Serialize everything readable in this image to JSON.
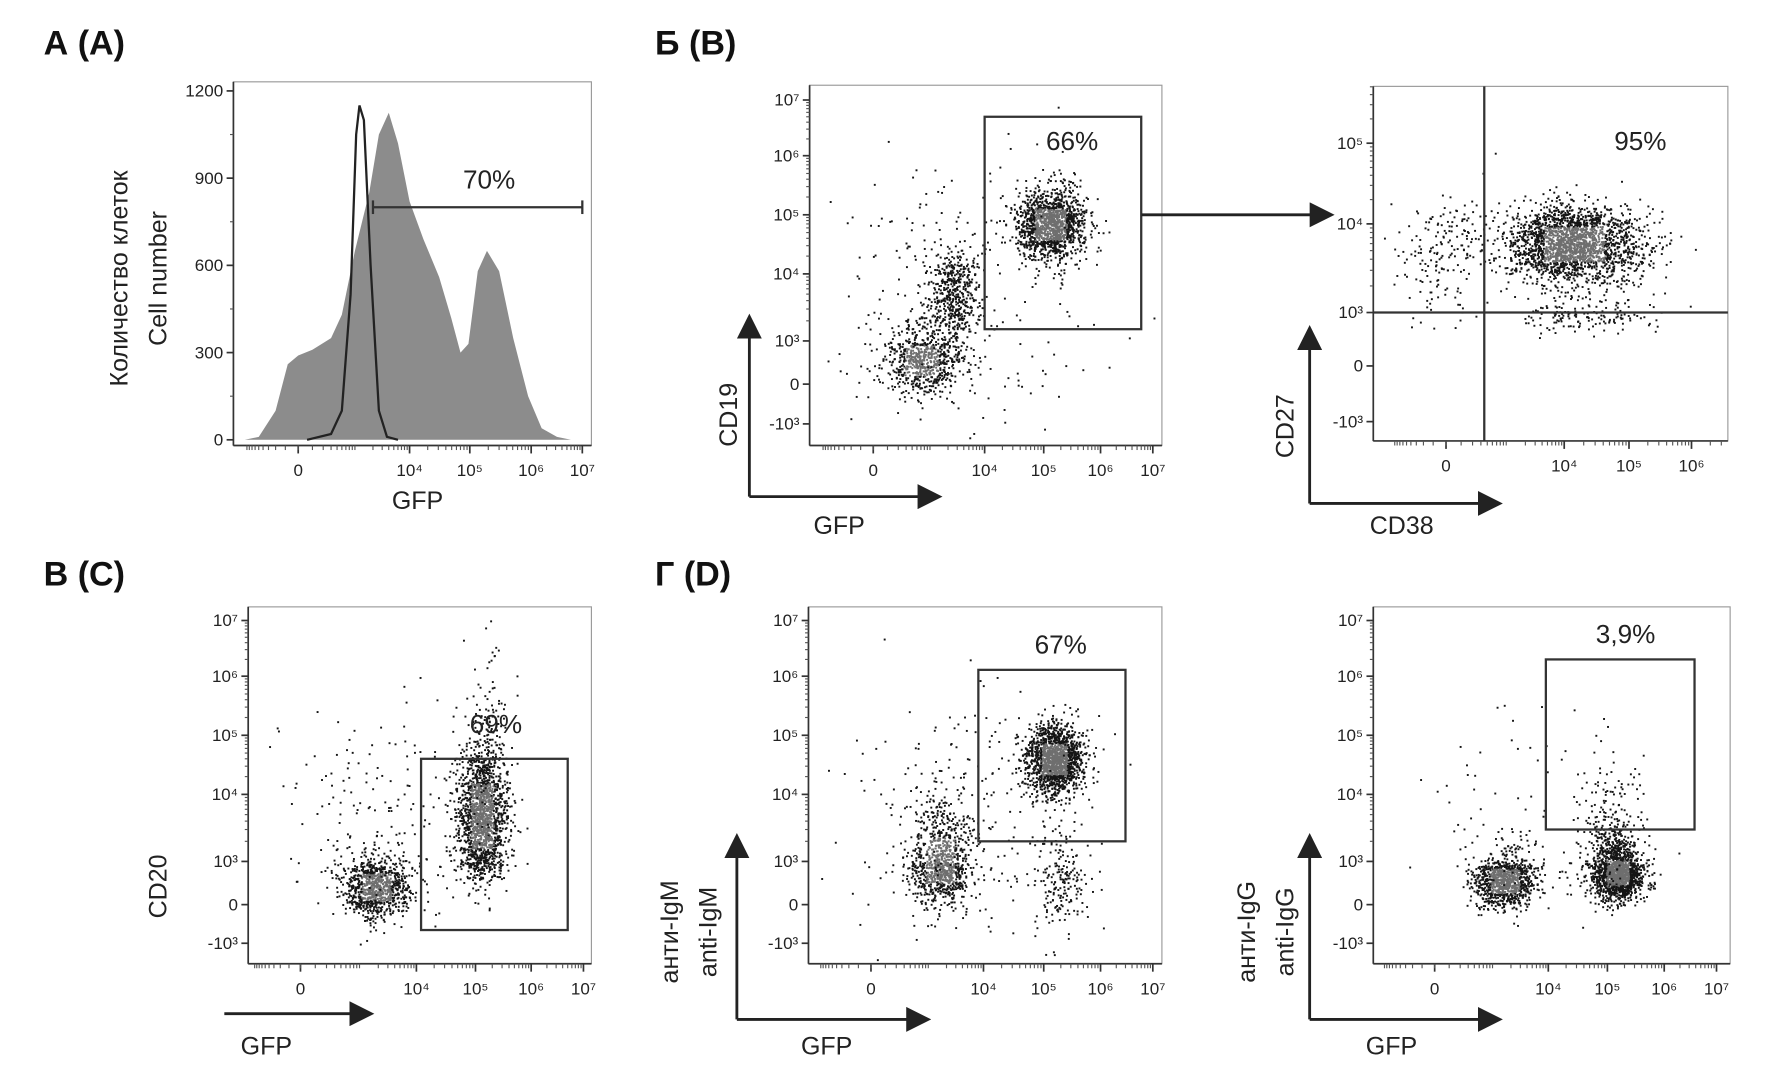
{
  "chart_data": [
    {
      "panel_label": "А (A)",
      "type": "area",
      "xlabel": "GFP",
      "ylabel": [
        "Количество клеток",
        "Cell number"
      ],
      "ylim": [
        0,
        1200
      ],
      "yticks": [
        "0",
        "300",
        "600",
        "900",
        "1200"
      ],
      "ytick_values": [
        0,
        300,
        600,
        900,
        1200
      ],
      "xticks": [
        "0",
        "10⁴",
        "10⁵",
        "10⁶",
        "10⁷"
      ],
      "xtick_values": [
        0,
        10000,
        100000,
        1000000,
        10000000
      ],
      "x_scale": "biexponential",
      "gate": {
        "label": "70%",
        "from": 2000,
        "to": 10000000,
        "y": 800
      },
      "series": [
        {
          "style": "filled",
          "color": "#8c8c8c",
          "points": [
            [
              -1000,
              0
            ],
            [
              -500,
              10
            ],
            [
              -200,
              100
            ],
            [
              -80,
              260
            ],
            [
              0,
              290
            ],
            [
              100,
              310
            ],
            [
              300,
              350
            ],
            [
              500,
              430
            ],
            [
              900,
              650
            ],
            [
              1700,
              850
            ],
            [
              2600,
              1050
            ],
            [
              4000,
              1125
            ],
            [
              6000,
              1020
            ],
            [
              10000,
              820
            ],
            [
              17000,
              690
            ],
            [
              31000,
              560
            ],
            [
              49000,
              420
            ],
            [
              70000,
              300
            ],
            [
              95000,
              330
            ],
            [
              135000,
              580
            ],
            [
              190000,
              650
            ],
            [
              300000,
              580
            ],
            [
              510000,
              350
            ],
            [
              890000,
              150
            ],
            [
              1600000,
              40
            ],
            [
              3200000,
              10
            ],
            [
              6000000,
              0
            ]
          ]
        },
        {
          "style": "line",
          "color": "#222222",
          "points": [
            [
              60,
              0
            ],
            [
              300,
              20
            ],
            [
              500,
              100
            ],
            [
              740,
              500
            ],
            [
              950,
              1050
            ],
            [
              1100,
              1150
            ],
            [
              1340,
              1100
            ],
            [
              1800,
              600
            ],
            [
              2600,
              100
            ],
            [
              3700,
              10
            ],
            [
              6000,
              0
            ]
          ]
        }
      ]
    },
    {
      "panel_label": "Б (B)",
      "type": "scatter",
      "xlabel": "GFP",
      "ylabel": "CD19",
      "x_scale": "biexponential",
      "y_scale": "biexponential",
      "xticks": [
        "0",
        "10⁴",
        "10⁵",
        "10⁶",
        "10⁷"
      ],
      "xtick_values": [
        0,
        10000,
        100000,
        1000000,
        10000000
      ],
      "yticks": [
        "-10³",
        "0",
        "10³",
        "10⁴",
        "10⁵",
        "10⁶",
        "10⁷"
      ],
      "ytick_values": [
        -1000,
        0,
        1000,
        10000,
        100000,
        1000000,
        10000000
      ],
      "gate": {
        "type": "rectangle",
        "label": "66%",
        "x": [
          10000,
          6000000
        ],
        "y": [
          1500,
          5000000
        ]
      },
      "populations": [
        {
          "x": 600,
          "y": 300,
          "sx": 0.35,
          "sy": 0.45,
          "n": 700
        },
        {
          "x": 2500,
          "y": 5000,
          "sx": 0.25,
          "sy": 0.4,
          "n": 500
        },
        {
          "x": 130000,
          "y": 70000,
          "sx": 0.3,
          "sy": 0.3,
          "n": 1400
        },
        {
          "x": 3000,
          "y": 3000,
          "sx": 1.2,
          "sy": 1.3,
          "n": 250
        }
      ]
    },
    {
      "type": "scatter",
      "xlabel": "CD38",
      "ylabel": "CD27",
      "x_scale": "biexponential",
      "y_scale": "biexponential",
      "xticks": [
        "0",
        "10⁴",
        "10⁵",
        "10⁶"
      ],
      "xtick_values": [
        0,
        10000,
        100000,
        1000000
      ],
      "yticks": [
        "-10³",
        "0",
        "10³",
        "10⁴",
        "10⁵"
      ],
      "ytick_values": [
        -1000,
        0,
        1000,
        10000,
        100000
      ],
      "gate": {
        "type": "quadrant",
        "label": "95%",
        "x": 350,
        "y": 1000
      },
      "populations": [
        {
          "x": 13000,
          "y": 6000,
          "sx": 0.55,
          "sy": 0.22,
          "n": 2200
        },
        {
          "x": 0,
          "y": 5000,
          "sx": 0.5,
          "sy": 0.35,
          "n": 200
        },
        {
          "x": 20000,
          "y": 800,
          "sx": 0.6,
          "sy": 0.2,
          "n": 150
        }
      ]
    },
    {
      "panel_label": "В (C)",
      "type": "scatter",
      "xlabel": "GFP",
      "ylabel": "CD20",
      "x_scale": "biexponential",
      "y_scale": "biexponential",
      "xticks": [
        "0",
        "10⁴",
        "10⁵",
        "10⁶",
        "10⁷"
      ],
      "xtick_values": [
        0,
        10000,
        100000,
        1000000,
        10000000
      ],
      "yticks": [
        "-10³",
        "0",
        "10³",
        "10⁴",
        "10⁵",
        "10⁶",
        "10⁷"
      ],
      "ytick_values": [
        -1000,
        0,
        1000,
        10000,
        100000,
        1000000,
        10000000
      ],
      "gate": {
        "type": "rectangle",
        "label": "69%",
        "x": [
          12000,
          5000000
        ],
        "y": [
          -400,
          40000
        ]
      },
      "populations": [
        {
          "x": 1800,
          "y": 200,
          "sx": 0.3,
          "sy": 0.4,
          "n": 900
        },
        {
          "x": 130000,
          "y": 5000,
          "sx": 0.22,
          "sy": 0.55,
          "n": 1600
        },
        {
          "x": 150000,
          "y": 100000,
          "sx": 0.2,
          "sy": 0.9,
          "n": 120
        },
        {
          "x": 3000,
          "y": 3000,
          "sx": 1.0,
          "sy": 1.0,
          "n": 200
        }
      ]
    },
    {
      "panel_label": "Г (D)",
      "type": "scatter",
      "xlabel": "GFP",
      "ylabel": [
        "анти-IgM",
        "anti-IgM"
      ],
      "x_scale": "biexponential",
      "y_scale": "biexponential",
      "xticks": [
        "0",
        "10⁴",
        "10⁵",
        "10⁶",
        "10⁷"
      ],
      "xtick_values": [
        0,
        10000,
        100000,
        1000000,
        10000000
      ],
      "yticks": [
        "-10³",
        "0",
        "10³",
        "10⁴",
        "10⁵",
        "10⁶",
        "10⁷"
      ],
      "ytick_values": [
        -1000,
        0,
        1000,
        10000,
        100000,
        1000000,
        10000000
      ],
      "gate": {
        "type": "rectangle",
        "label": "67%",
        "x": [
          8000,
          3000000
        ],
        "y": [
          2000,
          1300000
        ]
      },
      "populations": [
        {
          "x": 1500,
          "y": 800,
          "sx": 0.3,
          "sy": 0.5,
          "n": 900
        },
        {
          "x": 150000,
          "y": 40000,
          "sx": 0.25,
          "sy": 0.3,
          "n": 1500
        },
        {
          "x": 200000,
          "y": 300,
          "sx": 0.25,
          "sy": 0.7,
          "n": 200
        },
        {
          "x": 5000,
          "y": 5000,
          "sx": 1.0,
          "sy": 1.0,
          "n": 250
        }
      ]
    },
    {
      "type": "scatter",
      "xlabel": "GFP",
      "ylabel": [
        "анти-IgG",
        "anti-IgG"
      ],
      "x_scale": "biexponential",
      "y_scale": "biexponential",
      "xticks": [
        "0",
        "10⁴",
        "10⁵",
        "10⁶",
        "10⁷"
      ],
      "xtick_values": [
        0,
        10000,
        100000,
        1000000,
        10000000
      ],
      "yticks": [
        "-10³",
        "0",
        "10³",
        "10⁴",
        "10⁵",
        "10⁶",
        "10⁷"
      ],
      "ytick_values": [
        -1000,
        0,
        1000,
        10000,
        100000,
        1000000,
        10000000
      ],
      "gate": {
        "type": "rectangle",
        "label": "3,9%",
        "x": [
          9000,
          3800000
        ],
        "y": [
          3000,
          2000000
        ]
      },
      "populations": [
        {
          "x": 1500,
          "y": 300,
          "sx": 0.3,
          "sy": 0.35,
          "n": 1000
        },
        {
          "x": 150000,
          "y": 500,
          "sx": 0.22,
          "sy": 0.35,
          "n": 1500
        },
        {
          "x": 100000,
          "y": 3000,
          "sx": 0.3,
          "sy": 0.5,
          "n": 200
        },
        {
          "x": 5000,
          "y": 5000,
          "sx": 1.0,
          "sy": 1.0,
          "n": 80
        }
      ]
    }
  ]
}
